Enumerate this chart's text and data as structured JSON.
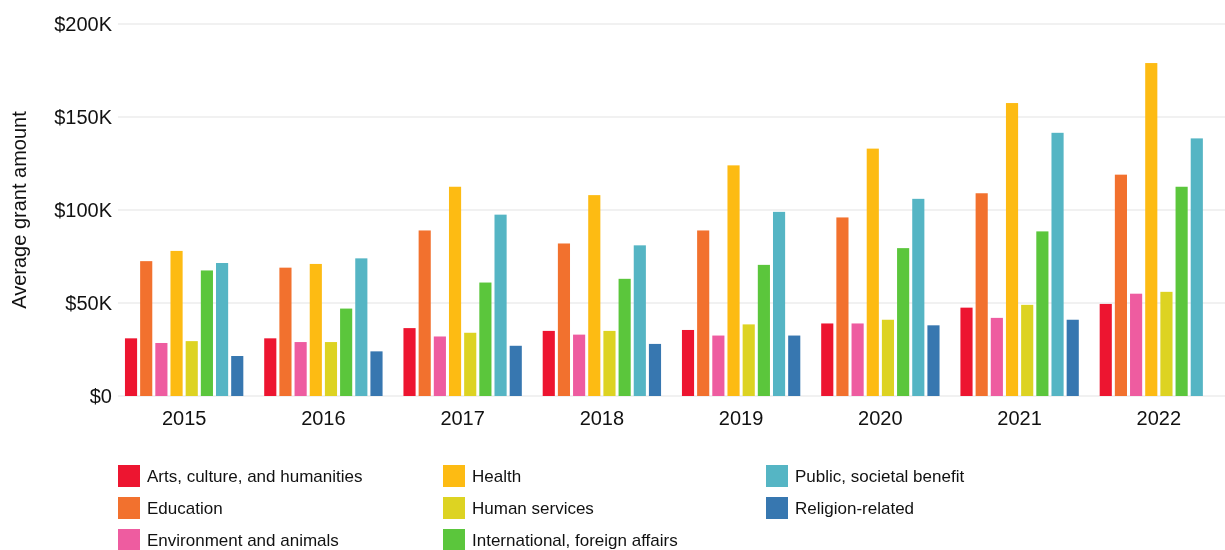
{
  "chart_data": {
    "type": "bar",
    "ylabel": "Average grant amount",
    "categories": [
      "2015",
      "2016",
      "2017",
      "2018",
      "2019",
      "2020",
      "2021",
      "2022"
    ],
    "series": [
      {
        "name": "Arts, culture, and humanities",
        "color": "#ed1530",
        "values": [
          31,
          31,
          36.5,
          35,
          35.5,
          39,
          47.5,
          49.5
        ]
      },
      {
        "name": "Education",
        "color": "#f2712e",
        "values": [
          72.5,
          69,
          89,
          82,
          89,
          96,
          109,
          119
        ]
      },
      {
        "name": "Environment and animals",
        "color": "#ee5ca0",
        "values": [
          28.5,
          29,
          32,
          33,
          32.5,
          39,
          42,
          55
        ]
      },
      {
        "name": "Health",
        "color": "#fdbb13",
        "values": [
          78,
          71,
          112.5,
          108,
          124,
          133,
          157.5,
          179
        ]
      },
      {
        "name": "Human services",
        "color": "#ddd322",
        "values": [
          29.5,
          29,
          34,
          35,
          38.5,
          41,
          49,
          56
        ]
      },
      {
        "name": "International, foreign affairs",
        "color": "#5bc63c",
        "values": [
          67.5,
          47,
          61,
          63,
          70.5,
          79.5,
          88.5,
          112.5
        ]
      },
      {
        "name": "Public, societal benefit",
        "color": "#55b5c4",
        "values": [
          71.5,
          74,
          97.5,
          81,
          99,
          106,
          141.5,
          138.5
        ]
      },
      {
        "name": "Religion-related",
        "color": "#3777b0",
        "values": [
          21.5,
          24,
          27,
          28,
          32.5,
          38,
          41,
          null
        ]
      }
    ],
    "ylim": [
      0,
      200
    ],
    "yticks": [
      {
        "value": 0,
        "label": "$0"
      },
      {
        "value": 50,
        "label": "$50K"
      },
      {
        "value": 100,
        "label": "$100K"
      },
      {
        "value": 150,
        "label": "$150K"
      },
      {
        "value": 200,
        "label": "$200K"
      }
    ],
    "grid": "y",
    "legend": "bottom"
  }
}
